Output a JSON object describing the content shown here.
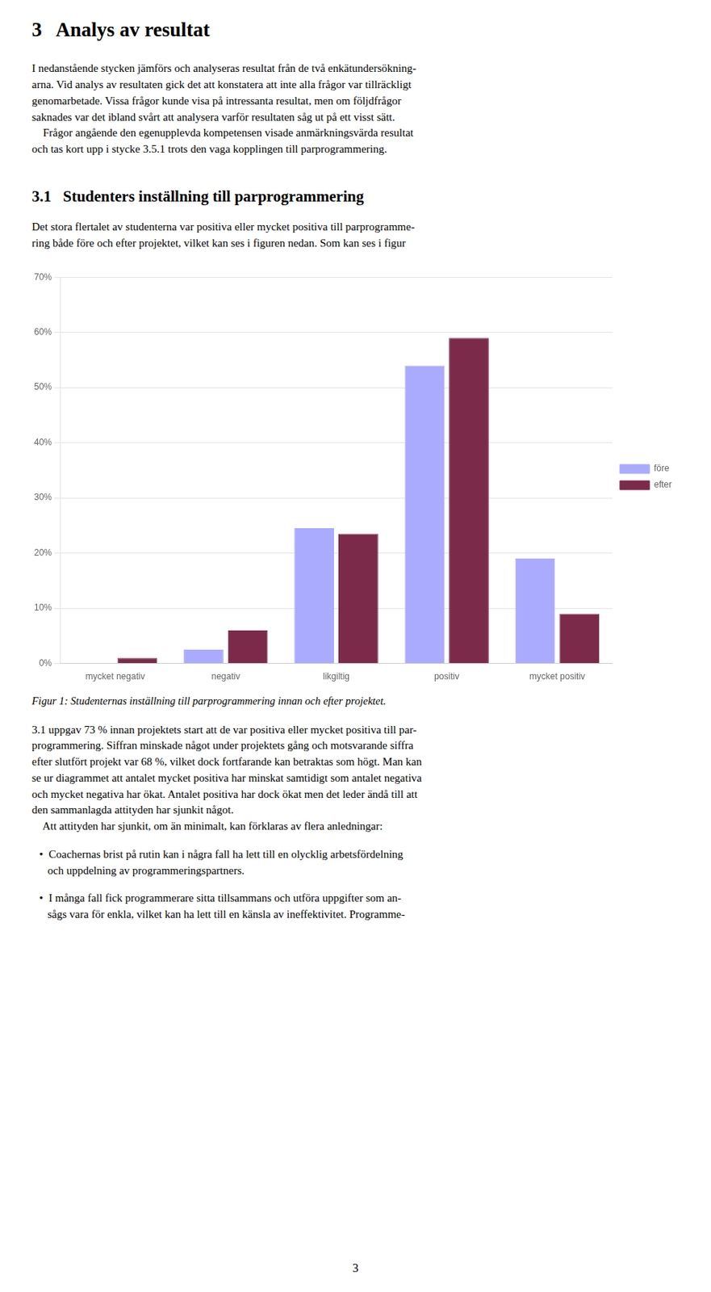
{
  "chart_data": {
    "type": "bar",
    "categories": [
      "mycket negativ",
      "negativ",
      "likgiltig",
      "positiv",
      "mycket positiv"
    ],
    "series": [
      {
        "name": "före",
        "color": "#aaaaff",
        "values": [
          0.0,
          0.025,
          0.245,
          0.54,
          0.19
        ]
      },
      {
        "name": "efter",
        "color": "#7b2a4a",
        "values": [
          0.01,
          0.06,
          0.235,
          0.59,
          0.09
        ]
      }
    ],
    "ylim": [
      0,
      0.7
    ],
    "yticks": [
      {
        "value": 0.0,
        "label": "0%"
      },
      {
        "value": 0.1,
        "label": "10%"
      },
      {
        "value": 0.2,
        "label": "20%"
      },
      {
        "value": 0.3,
        "label": "30%"
      },
      {
        "value": 0.4,
        "label": "40%"
      },
      {
        "value": 0.5,
        "label": "50%"
      },
      {
        "value": 0.6,
        "label": "60%"
      },
      {
        "value": 0.7,
        "label": "70%"
      }
    ],
    "grid": true,
    "legend": "right",
    "annotations": [
      "3   Analys av resultat",
      "I nedanstående stycken jämförs och analyseras resultat från de två enkätundersökning-\narna. Vid analys av resultaten gick det att konstatera att inte alla frågor var tillräckligt\ngenomarbetade. Vissa frågor kunde visa på intressanta resultat, men om följdfrågor\nsaknades var det ibland svårt att analysera varför resultaten såg ut på ett visst sätt.\n    Frågor angående den egenupplevda kompetensen visade anmärkningsvärda resultat\noch tas kort upp i stycke 3.5.1 trots den vaga kopplingen till parprogrammering.",
      "3.1   Studenters inställning till parprogrammering",
      "Det stora flertalet av studenterna var positiva eller mycket positiva till parprogramme-\nring både före och efter projektet, vilket kan ses i figuren nedan. Som kan ses i figur",
      "Figur 1: Studenternas inställning till parprogrammering innan och efter projektet.",
      "3.1 uppgav 73 % innan projektets start att de var positiva eller mycket positiva till par-\nprogrammering. Siffran minskade något under projektets gång och motsvarande siffra\nefter slutfört projekt var 68 %, vilket dock fortfarande kan betraktas som högt. Man kan\nse ur diagrammet att antalet mycket positiva har minskat samtidigt som antalet negativa\noch mycket negativa har ökat. Antalet positiva har dock ökat men det leder ändå till att\nden sammanlagda attityden har sjunkit något.\n    Att attityden har sjunkit, om än minimalt, kan förklaras av flera anledningar:",
      "•  Coachernas brist på rutin kan i några fall ha lett till en olycklig arbetsfördelning\n   och uppdelning av programmeringspartners.",
      "•  I många fall fick programmerare sitta tillsammans och utföra uppgifter som an-\n   sågs vara för enkla, vilket kan ha lett till en känsla av ineffektivitet. Programme-",
      "3"
    ]
  }
}
